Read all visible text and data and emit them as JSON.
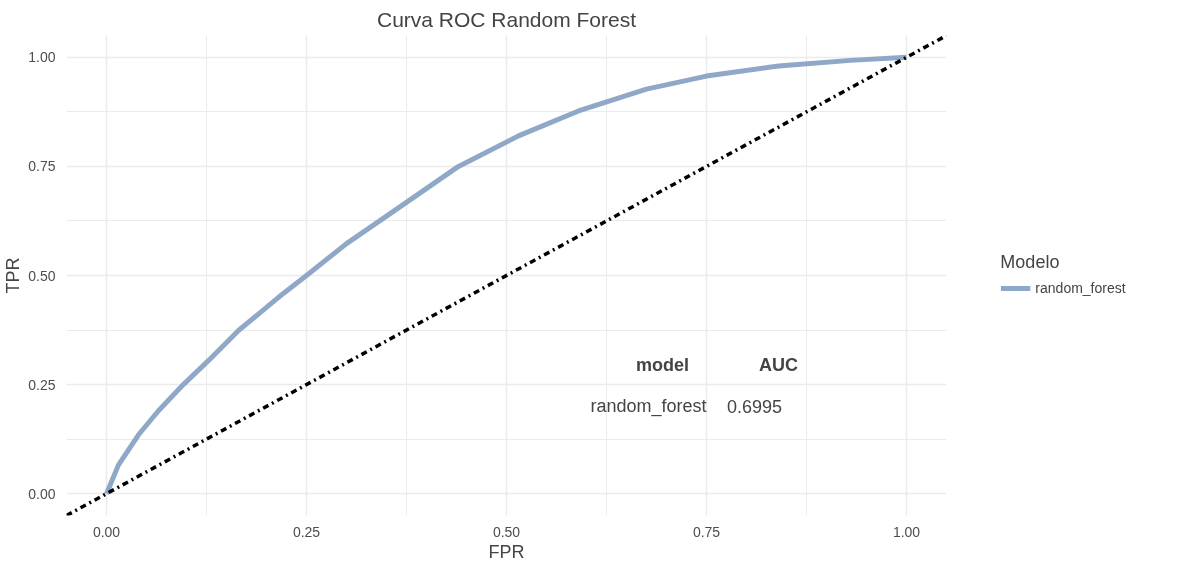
{
  "chart_data": {
    "type": "line",
    "title": "Curva ROC Random Forest",
    "xlabel": "FPR",
    "ylabel": "TPR",
    "legend_title": "Modelo",
    "xlim": [
      -0.05,
      1.05
    ],
    "ylim": [
      -0.05,
      1.05
    ],
    "xticks": [
      {
        "value": 0,
        "label": "0.00"
      },
      {
        "value": 0.25,
        "label": "0.25"
      },
      {
        "value": 0.5,
        "label": "0.50"
      },
      {
        "value": 0.75,
        "label": "0.75"
      },
      {
        "value": 1,
        "label": "1.00"
      }
    ],
    "yticks": [
      {
        "value": 0,
        "label": "0.00"
      },
      {
        "value": 0.25,
        "label": "0.25"
      },
      {
        "value": 0.5,
        "label": "0.50"
      },
      {
        "value": 0.75,
        "label": "0.75"
      },
      {
        "value": 1,
        "label": "1.00"
      }
    ],
    "grid": true,
    "legend": "right",
    "series": [
      {
        "name": "random_forest",
        "color": "#8fa8c8",
        "line_style": "solid",
        "x": [
          0,
          0.015,
          0.04,
          0.065,
          0.096,
          0.128,
          0.165,
          0.215,
          0.25,
          0.3,
          0.365,
          0.44,
          0.515,
          0.59,
          0.675,
          0.75,
          0.84,
          0.93,
          1
        ],
        "values": [
          0,
          0.066,
          0.135,
          0.19,
          0.25,
          0.306,
          0.374,
          0.45,
          0.5,
          0.573,
          0.655,
          0.75,
          0.82,
          0.877,
          0.927,
          0.957,
          0.98,
          0.993,
          1
        ]
      },
      {
        "color": "#000000",
        "line_style": "dashdot",
        "x": [
          -0.05,
          1.05
        ],
        "values": [
          -0.05,
          1.05
        ]
      }
    ],
    "annotations": [
      "model",
      "AUC",
      "random_forest",
      "0.6995"
    ]
  }
}
